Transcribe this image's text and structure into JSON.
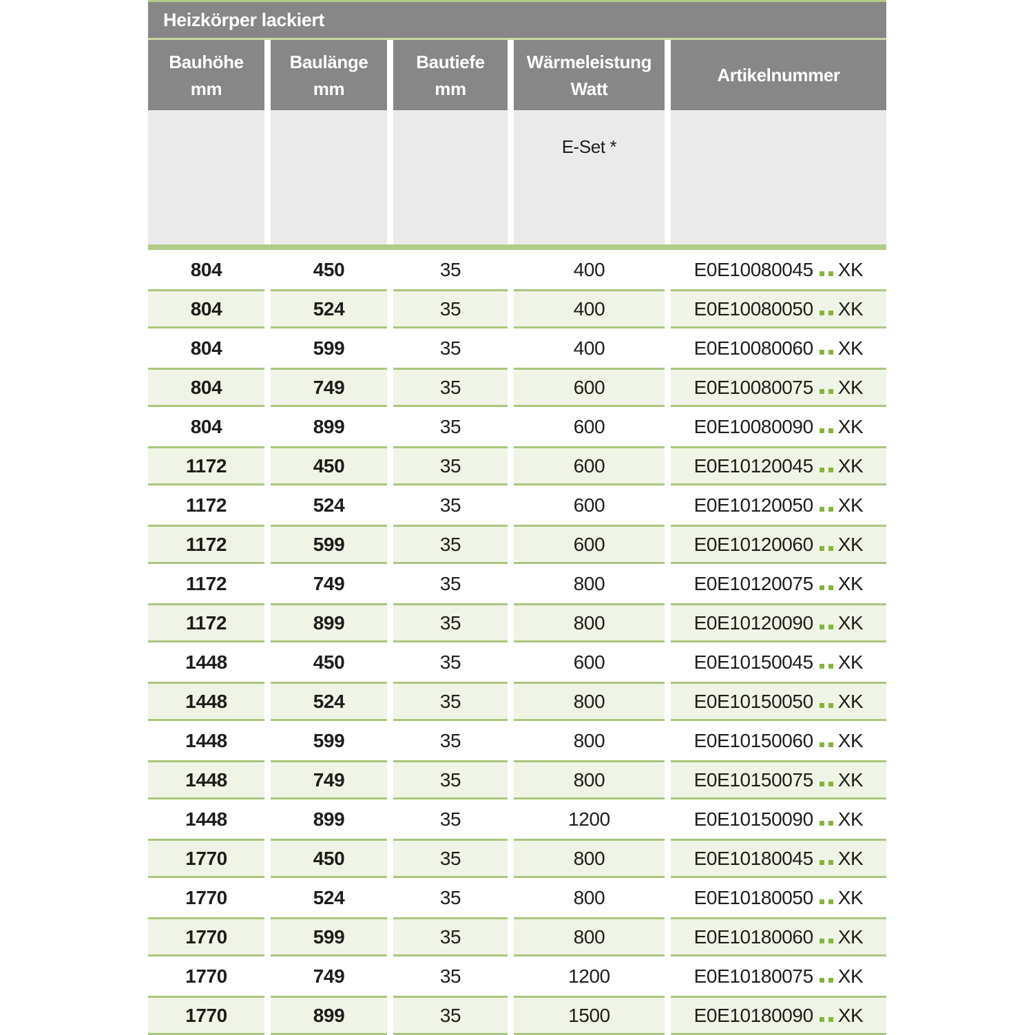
{
  "title": "Heizkörper lackiert",
  "columns": [
    {
      "label": "Bauhöhe",
      "unit": "mm"
    },
    {
      "label": "Baulänge",
      "unit": "mm"
    },
    {
      "label": "Bautiefe",
      "unit": "mm"
    },
    {
      "label": "Wärmeleistung",
      "unit": "Watt"
    },
    {
      "label": "Artikelnummer",
      "unit": ""
    }
  ],
  "subheader": {
    "e_set_label": "E-Set *"
  },
  "colors": {
    "header_gray": "#878787",
    "subheader_gray": "#eaeaea",
    "green_line": "#b2cb8a",
    "thin_line": "#c9d9a3",
    "row_green_bg": "#f0f4e6",
    "row_green_border": "#aac67e",
    "dot_green": "#85b43e",
    "text_dark": "#1d1d1b"
  },
  "rows": [
    {
      "bauhoehe": "804",
      "baulaenge": "450",
      "bautiefe": "35",
      "watt": "400",
      "artikel_prefix": "E0E10080045",
      "artikel_suffix": "XK"
    },
    {
      "bauhoehe": "804",
      "baulaenge": "524",
      "bautiefe": "35",
      "watt": "400",
      "artikel_prefix": "E0E10080050",
      "artikel_suffix": "XK"
    },
    {
      "bauhoehe": "804",
      "baulaenge": "599",
      "bautiefe": "35",
      "watt": "400",
      "artikel_prefix": "E0E10080060",
      "artikel_suffix": "XK"
    },
    {
      "bauhoehe": "804",
      "baulaenge": "749",
      "bautiefe": "35",
      "watt": "600",
      "artikel_prefix": "E0E10080075",
      "artikel_suffix": "XK"
    },
    {
      "bauhoehe": "804",
      "baulaenge": "899",
      "bautiefe": "35",
      "watt": "600",
      "artikel_prefix": "E0E10080090",
      "artikel_suffix": "XK"
    },
    {
      "bauhoehe": "1172",
      "baulaenge": "450",
      "bautiefe": "35",
      "watt": "600",
      "artikel_prefix": "E0E10120045",
      "artikel_suffix": "XK"
    },
    {
      "bauhoehe": "1172",
      "baulaenge": "524",
      "bautiefe": "35",
      "watt": "600",
      "artikel_prefix": "E0E10120050",
      "artikel_suffix": "XK"
    },
    {
      "bauhoehe": "1172",
      "baulaenge": "599",
      "bautiefe": "35",
      "watt": "600",
      "artikel_prefix": "E0E10120060",
      "artikel_suffix": "XK"
    },
    {
      "bauhoehe": "1172",
      "baulaenge": "749",
      "bautiefe": "35",
      "watt": "800",
      "artikel_prefix": "E0E10120075",
      "artikel_suffix": "XK"
    },
    {
      "bauhoehe": "1172",
      "baulaenge": "899",
      "bautiefe": "35",
      "watt": "800",
      "artikel_prefix": "E0E10120090",
      "artikel_suffix": "XK"
    },
    {
      "bauhoehe": "1448",
      "baulaenge": "450",
      "bautiefe": "35",
      "watt": "600",
      "artikel_prefix": "E0E10150045",
      "artikel_suffix": "XK"
    },
    {
      "bauhoehe": "1448",
      "baulaenge": "524",
      "bautiefe": "35",
      "watt": "800",
      "artikel_prefix": "E0E10150050",
      "artikel_suffix": "XK"
    },
    {
      "bauhoehe": "1448",
      "baulaenge": "599",
      "bautiefe": "35",
      "watt": "800",
      "artikel_prefix": "E0E10150060",
      "artikel_suffix": "XK"
    },
    {
      "bauhoehe": "1448",
      "baulaenge": "749",
      "bautiefe": "35",
      "watt": "800",
      "artikel_prefix": "E0E10150075",
      "artikel_suffix": "XK"
    },
    {
      "bauhoehe": "1448",
      "baulaenge": "899",
      "bautiefe": "35",
      "watt": "1200",
      "artikel_prefix": "E0E10150090",
      "artikel_suffix": "XK"
    },
    {
      "bauhoehe": "1770",
      "baulaenge": "450",
      "bautiefe": "35",
      "watt": "800",
      "artikel_prefix": "E0E10180045",
      "artikel_suffix": "XK"
    },
    {
      "bauhoehe": "1770",
      "baulaenge": "524",
      "bautiefe": "35",
      "watt": "800",
      "artikel_prefix": "E0E10180050",
      "artikel_suffix": "XK"
    },
    {
      "bauhoehe": "1770",
      "baulaenge": "599",
      "bautiefe": "35",
      "watt": "800",
      "artikel_prefix": "E0E10180060",
      "artikel_suffix": "XK"
    },
    {
      "bauhoehe": "1770",
      "baulaenge": "749",
      "bautiefe": "35",
      "watt": "1200",
      "artikel_prefix": "E0E10180075",
      "artikel_suffix": "XK"
    },
    {
      "bauhoehe": "1770",
      "baulaenge": "899",
      "bautiefe": "35",
      "watt": "1500",
      "artikel_prefix": "E0E10180090",
      "artikel_suffix": "XK"
    }
  ]
}
